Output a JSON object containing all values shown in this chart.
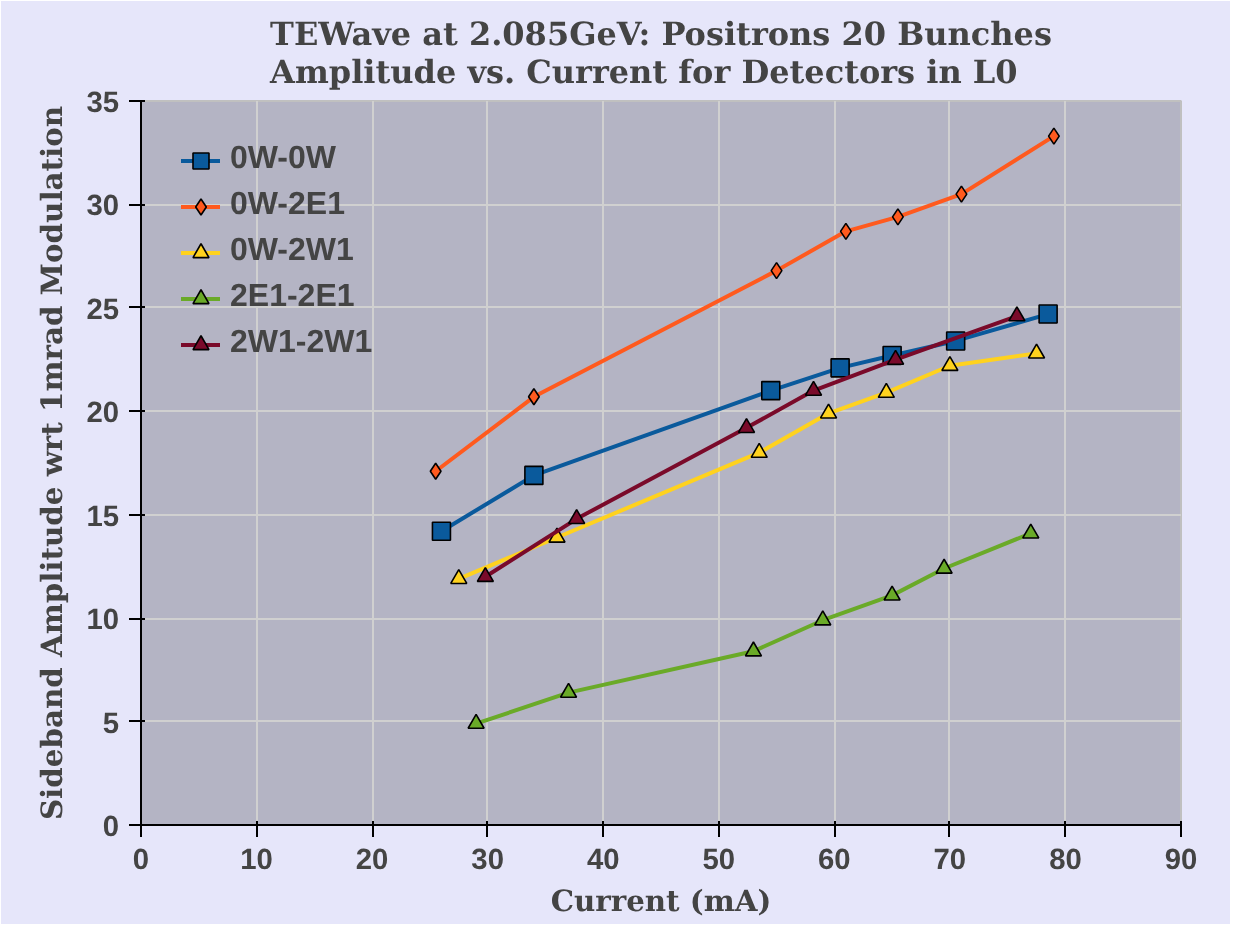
{
  "chart_data": {
    "type": "line",
    "title": "TEWave at 2.085GeV: Positrons 20 Bunches\nAmplitude vs. Current for Detectors in L0",
    "xlabel": "Current (mA)",
    "ylabel": "Sideband Amplitude wrt 1mrad Modulation",
    "xlim": [
      0,
      90
    ],
    "ylim": [
      0,
      35
    ],
    "xticks": [
      0,
      10,
      20,
      30,
      40,
      50,
      60,
      70,
      80,
      90
    ],
    "yticks": [
      0,
      5,
      10,
      15,
      20,
      25,
      30,
      35
    ],
    "grid": true,
    "legend": "top left",
    "line_style": "solid",
    "series": [
      {
        "name": "0W-0W",
        "color": "#0a5a9c",
        "marker": "square",
        "x": [
          26,
          34,
          54.5,
          60.5,
          65,
          70.5,
          78.5
        ],
        "values": [
          14.2,
          16.9,
          21,
          22.1,
          22.7,
          23.4,
          24.7
        ]
      },
      {
        "name": "0W-2E1",
        "color": "#ff5a1e",
        "marker": "diamond",
        "x": [
          25.5,
          34,
          55,
          61,
          65.5,
          71,
          79
        ],
        "values": [
          17.1,
          20.7,
          26.8,
          28.7,
          29.4,
          30.5,
          33.3
        ]
      },
      {
        "name": "0W-2W1",
        "color": "#ffd21e",
        "marker": "triangle",
        "x": [
          27.5,
          36,
          53.5,
          59.5,
          64.5,
          70,
          77.5
        ],
        "values": [
          11.9,
          13.9,
          18,
          19.9,
          20.9,
          22.2,
          22.8
        ]
      },
      {
        "name": "2E1-2E1",
        "color": "#6aaa28",
        "marker": "triangle",
        "x": [
          29,
          37,
          53,
          59,
          65,
          69.5,
          77
        ],
        "values": [
          4.9,
          6.4,
          8.4,
          9.9,
          11.1,
          12.4,
          14.1
        ]
      },
      {
        "name": "2W1-2W1",
        "color": "#7a0a2a",
        "marker": "triangle",
        "x": [
          29.8,
          37.7,
          52.4,
          58.2,
          65.3,
          75.8
        ],
        "values": [
          12,
          14.8,
          19.2,
          21,
          22.5,
          24.6
        ]
      }
    ]
  }
}
